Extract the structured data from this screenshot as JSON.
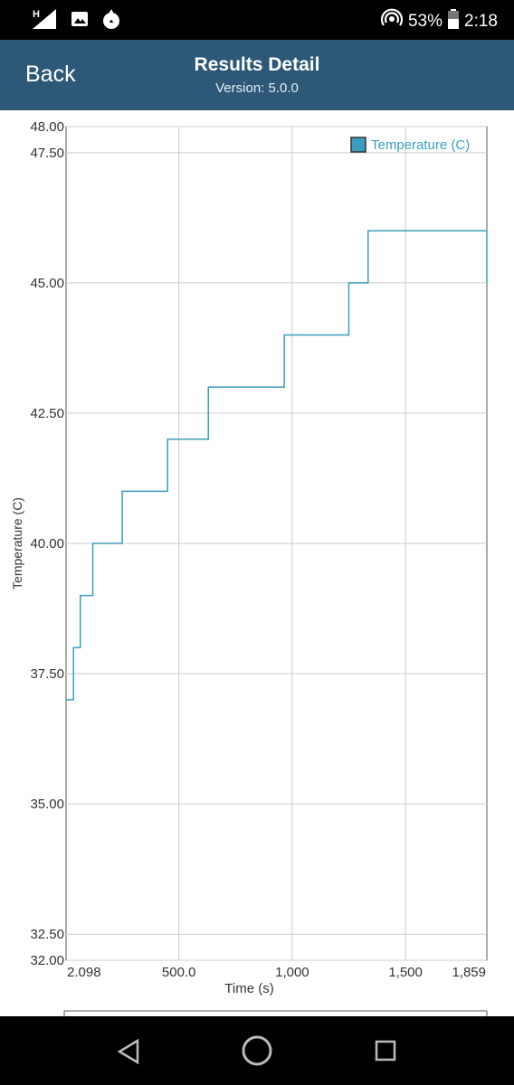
{
  "status_bar": {
    "battery": "53%",
    "time": "2:18",
    "network_label": "H",
    "icons": [
      "signal-icon",
      "image-icon",
      "fire-icon",
      "hotspot-icon",
      "battery-icon"
    ]
  },
  "app_bar": {
    "back_label": "Back",
    "title": "Results Detail",
    "version": "Version: 5.0.0"
  },
  "chart_data": {
    "type": "line",
    "step": true,
    "title": "",
    "xlabel": "Time (s)",
    "ylabel": "Temperature (C)",
    "xlim": [
      2.098,
      1859
    ],
    "ylim": [
      32.0,
      48.0
    ],
    "xticks": [
      {
        "value": 2.098,
        "label": "2.098"
      },
      {
        "value": 500,
        "label": "500.0"
      },
      {
        "value": 1000,
        "label": "1,000"
      },
      {
        "value": 1500,
        "label": "1,500"
      },
      {
        "value": 1859,
        "label": "1,859"
      }
    ],
    "yticks": [
      {
        "value": 32.0,
        "label": "32.00"
      },
      {
        "value": 32.5,
        "label": "32.50"
      },
      {
        "value": 35.0,
        "label": "35.00"
      },
      {
        "value": 37.5,
        "label": "37.50"
      },
      {
        "value": 40.0,
        "label": "40.00"
      },
      {
        "value": 42.5,
        "label": "42.50"
      },
      {
        "value": 45.0,
        "label": "45.00"
      },
      {
        "value": 47.5,
        "label": "47.50"
      },
      {
        "value": 48.0,
        "label": "48.00"
      }
    ],
    "grid": true,
    "legend": "top-right",
    "color": "#3b9dbd",
    "series": [
      {
        "name": "Temperature (C)",
        "x": [
          2.098,
          35,
          65,
          120,
          250,
          450,
          630,
          965,
          1250,
          1335,
          1859,
          1859
        ],
        "y": [
          37,
          38,
          39,
          40,
          41,
          42,
          43,
          44,
          45,
          46,
          46,
          45
        ]
      }
    ]
  }
}
